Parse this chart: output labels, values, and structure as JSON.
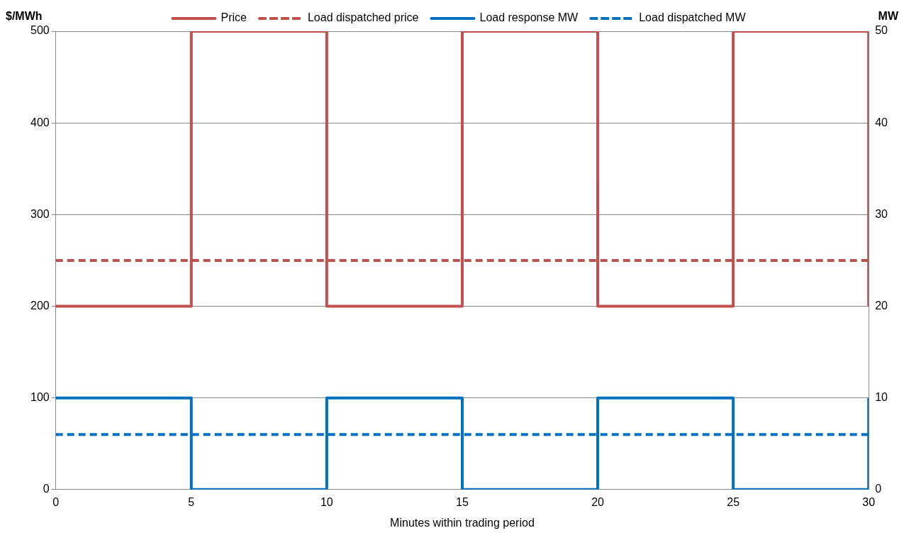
{
  "chart_data": {
    "type": "step",
    "xlabel": "Minutes within trading period",
    "ylabel": "$/MWh",
    "y2label": "MW",
    "series": [
      {
        "name": "Price",
        "color": "#c0504d",
        "type": "step",
        "x": [
          0,
          5,
          10,
          15,
          20,
          25,
          30,
          30
        ],
        "values": [
          200,
          500,
          200,
          500,
          200,
          500,
          500,
          200
        ],
        "line_style": "solid"
      },
      {
        "name": "Load dispatched price",
        "color": "#c0504d",
        "type": "line",
        "x": [
          0,
          30
        ],
        "values": [
          250,
          250
        ],
        "line_style": "dashed"
      },
      {
        "name": "Load response MW",
        "color": "#0070c0",
        "type": "step",
        "axis": "y2",
        "x": [
          0,
          5,
          10,
          15,
          20,
          25,
          30,
          30
        ],
        "values": [
          10,
          0,
          10,
          0,
          10,
          0,
          0,
          10
        ],
        "line_style": "solid"
      },
      {
        "name": "Load dispatched MW",
        "color": "#0070c0",
        "type": "line",
        "axis": "y2",
        "x": [
          0,
          30
        ],
        "values": [
          6,
          6
        ],
        "line_style": "dashed"
      }
    ],
    "xlim": [
      0,
      30
    ],
    "xticks": [
      0,
      5,
      10,
      15,
      20,
      25,
      30
    ],
    "ylim": [
      0,
      500
    ],
    "yticks": [
      0,
      100,
      200,
      300,
      400,
      500
    ],
    "y2lim": [
      0,
      50
    ],
    "y2ticks": [
      0,
      10,
      20,
      30,
      40,
      50
    ],
    "grid": "y",
    "legend": "top",
    "marker": "none"
  }
}
